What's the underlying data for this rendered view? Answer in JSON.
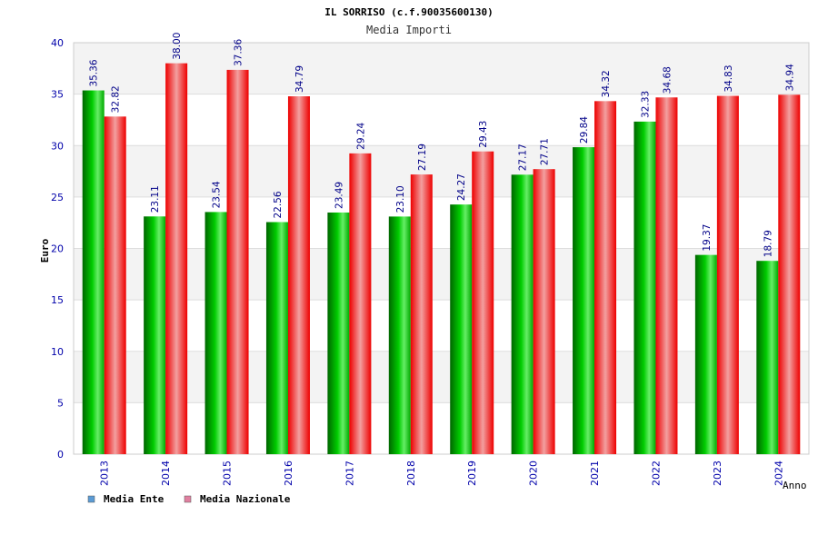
{
  "colors": {
    "ente": "#00bb00",
    "nazionale": "#ee1111",
    "axis_text": "#0000aa",
    "grid_band": "#f3f3f3",
    "grid_line": "#dddddd",
    "legend_ente": "#5b9bd5",
    "legend_nazionale": "#e080a0"
  },
  "chart_data": {
    "type": "bar",
    "title": "IL SORRISO (c.f.90035600130)",
    "subtitle": "Media Importi",
    "xlabel": "Anno",
    "ylabel": "Euro",
    "ylim": [
      0,
      40
    ],
    "yticks": [
      "0",
      "5",
      "10",
      "15",
      "20",
      "25",
      "30",
      "35",
      "40"
    ],
    "categories": [
      "2013",
      "2014",
      "2015",
      "2016",
      "2017",
      "2018",
      "2019",
      "2020",
      "2021",
      "2022",
      "2023",
      "2024"
    ],
    "series": [
      {
        "name": "Media Ente",
        "values": [
          35.36,
          23.11,
          23.54,
          22.56,
          23.49,
          23.1,
          24.27,
          27.17,
          29.84,
          32.33,
          19.37,
          18.79
        ],
        "labels": [
          "35.36",
          "23.11",
          "23.54",
          "22.56",
          "23.49",
          "23.10",
          "24.27",
          "27.17",
          "29.84",
          "32.33",
          "19.37",
          "18.79"
        ]
      },
      {
        "name": "Media Nazionale",
        "values": [
          32.82,
          38.0,
          37.36,
          34.79,
          29.24,
          27.19,
          29.43,
          27.71,
          34.32,
          34.68,
          34.83,
          34.94
        ],
        "labels": [
          "32.82",
          "38.00",
          "37.36",
          "34.79",
          "29.24",
          "27.19",
          "29.43",
          "27.71",
          "34.32",
          "34.68",
          "34.83",
          "34.94"
        ]
      }
    ],
    "legend": [
      "Media Ente",
      "Media Nazionale"
    ],
    "legend_position": "bottom-left",
    "grid": true
  }
}
